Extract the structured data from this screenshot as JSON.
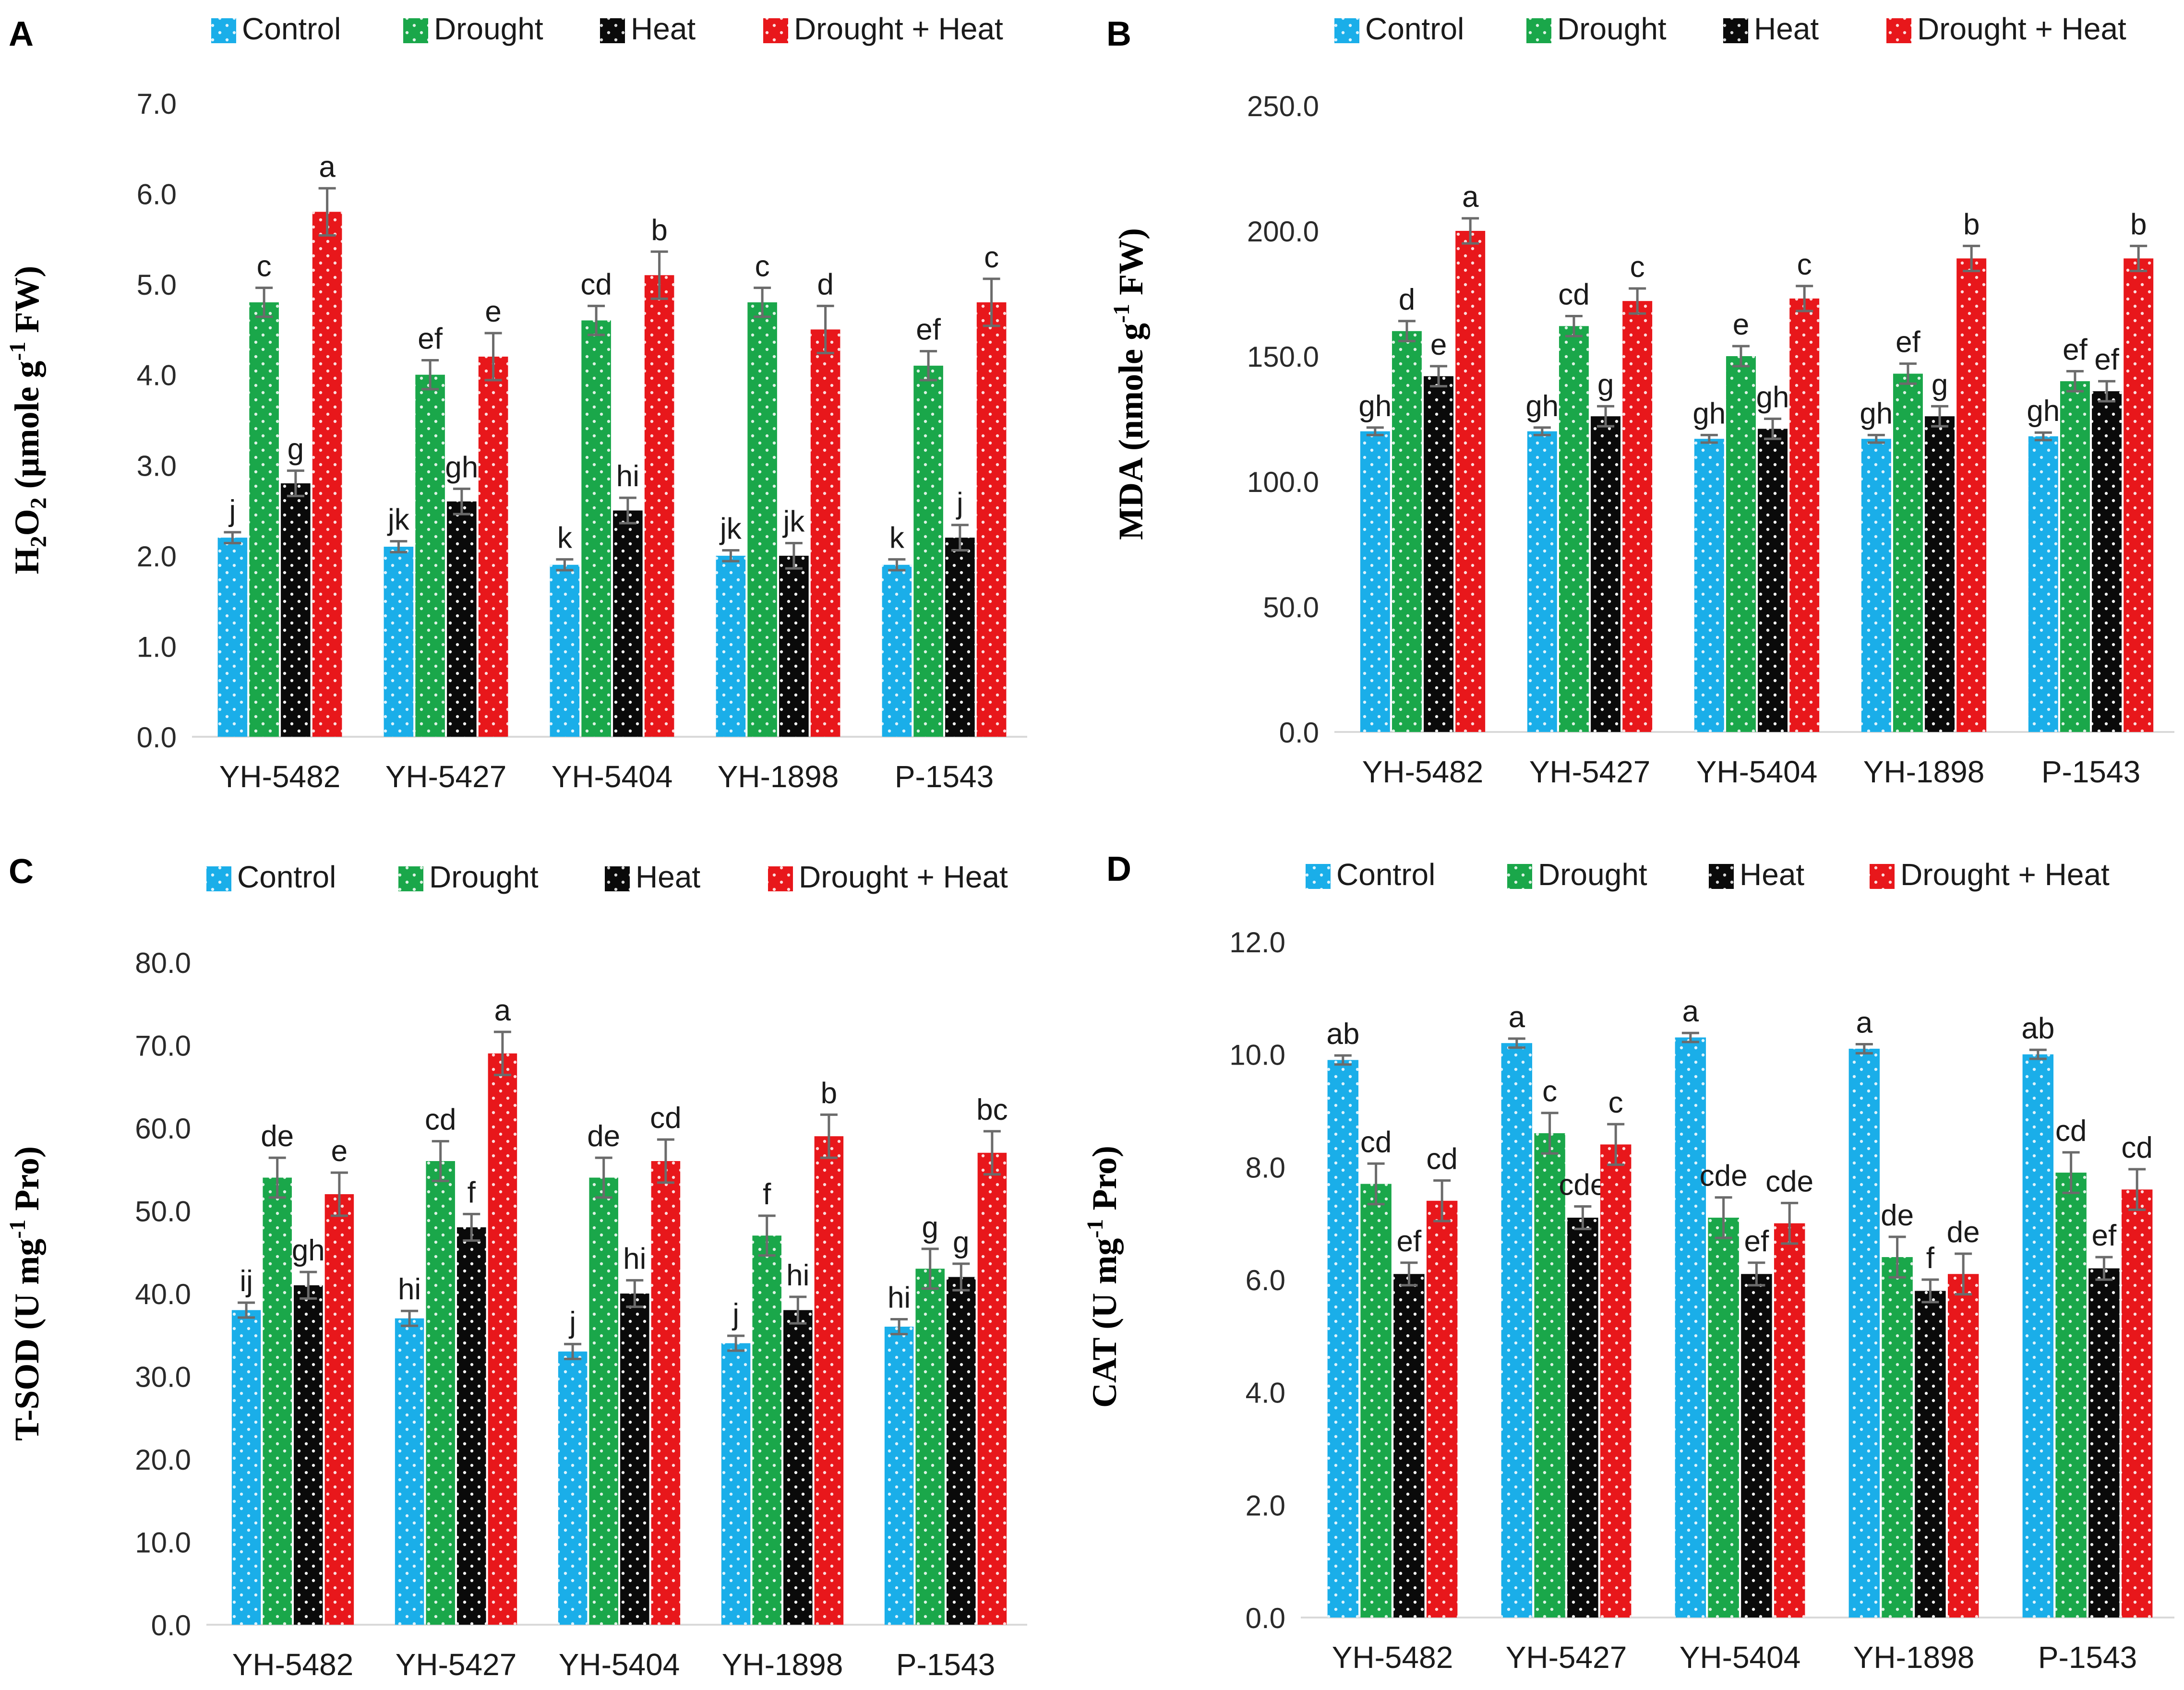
{
  "figure": {
    "legend_labels": [
      "Control",
      "Drought",
      "Heat",
      "Drought + Heat"
    ],
    "colors": {
      "Control": "#1aaee9",
      "Drought": "#1aa74a",
      "Heat": "#0a0a0a",
      "Drought + Heat": "#e8171b",
      "axis": "#d9d9d9",
      "errorbar": "#6b6b6b"
    }
  },
  "chart_data": [
    {
      "panel": "A",
      "type": "bar",
      "ylabel": {
        "main": "H",
        "sub1": "2",
        "mid": "O",
        "sub2": "2",
        "unit_prefix": " (μmole g",
        "sup": "-1",
        "unit_suffix": " FW)"
      },
      "ylim": [
        0,
        7
      ],
      "ytick_step": 1,
      "ytick_labels": [
        "0.0",
        "1.0",
        "2.0",
        "3.0",
        "4.0",
        "5.0",
        "6.0",
        "7.0"
      ],
      "categories": [
        "YH-5482",
        "YH-5427",
        "YH-5404",
        "YH-1898",
        "P-1543"
      ],
      "series": [
        {
          "name": "Control",
          "values": [
            2.2,
            2.1,
            1.9,
            2.0,
            1.9
          ],
          "errors": [
            0.06,
            0.06,
            0.06,
            0.06,
            0.06
          ],
          "letters": [
            "j",
            "jk",
            "k",
            "jk",
            "k"
          ]
        },
        {
          "name": "Drought",
          "values": [
            4.8,
            4.0,
            4.6,
            4.8,
            4.1
          ],
          "errors": [
            0.16,
            0.16,
            0.16,
            0.16,
            0.16
          ],
          "letters": [
            "c",
            "ef",
            "cd",
            "c",
            "ef"
          ]
        },
        {
          "name": "Heat",
          "values": [
            2.8,
            2.6,
            2.5,
            2.0,
            2.2
          ],
          "errors": [
            0.14,
            0.14,
            0.14,
            0.14,
            0.14
          ],
          "letters": [
            "g",
            "gh",
            "hi",
            "jk",
            "j"
          ]
        },
        {
          "name": "Drought + Heat",
          "values": [
            5.8,
            4.2,
            5.1,
            4.5,
            4.8
          ],
          "errors": [
            0.26,
            0.26,
            0.26,
            0.26,
            0.26
          ],
          "letters": [
            "a",
            "e",
            "b",
            "d",
            "c"
          ]
        }
      ]
    },
    {
      "panel": "B",
      "type": "bar",
      "ylabel": {
        "main": "MDA",
        "unit_prefix": " (nmole g",
        "sup": "-1",
        "unit_suffix": " FW)"
      },
      "ylim": [
        0,
        250
      ],
      "ytick_step": 50,
      "ytick_labels": [
        "0.0",
        "50.0",
        "100.0",
        "150.0",
        "200.0",
        "250.0"
      ],
      "categories": [
        "YH-5482",
        "YH-5427",
        "YH-5404",
        "YH-1898",
        "P-1543"
      ],
      "series": [
        {
          "name": "Control",
          "values": [
            120,
            120,
            117,
            117,
            118
          ],
          "errors": [
            1.5,
            1.5,
            1.5,
            1.5,
            1.5
          ],
          "letters": [
            "gh",
            "gh",
            "gh",
            "gh",
            "gh"
          ]
        },
        {
          "name": "Drought",
          "values": [
            160,
            162,
            150,
            143,
            140
          ],
          "errors": [
            4,
            4,
            4,
            4,
            4
          ],
          "letters": [
            "d",
            "cd",
            "e",
            "ef",
            "ef"
          ]
        },
        {
          "name": "Heat",
          "values": [
            142,
            126,
            121,
            126,
            136
          ],
          "errors": [
            4,
            4,
            4,
            4,
            4
          ],
          "letters": [
            "e",
            "g",
            "gh",
            "g",
            "ef"
          ]
        },
        {
          "name": "Drought + Heat",
          "values": [
            200,
            172,
            173,
            189,
            189
          ],
          "errors": [
            5,
            5,
            5,
            5,
            5
          ],
          "letters": [
            "a",
            "c",
            "c",
            "b",
            "b"
          ]
        }
      ]
    },
    {
      "panel": "C",
      "type": "bar",
      "ylabel": {
        "main": "T-SOD",
        "unit_prefix": " (U mg",
        "sup": "-1",
        "unit_suffix": " Pro)"
      },
      "ylim": [
        0,
        80
      ],
      "ytick_step": 10,
      "ytick_labels": [
        "0.0",
        "10.0",
        "20.0",
        "30.0",
        "40.0",
        "50.0",
        "60.0",
        "70.0",
        "80.0"
      ],
      "categories": [
        "YH-5482",
        "YH-5427",
        "YH-5404",
        "YH-1898",
        "P-1543"
      ],
      "series": [
        {
          "name": "Control",
          "values": [
            38,
            37,
            33,
            34,
            36
          ],
          "errors": [
            0.9,
            0.9,
            0.9,
            0.9,
            0.9
          ],
          "letters": [
            "ij",
            "hi",
            "j",
            "j",
            "hi"
          ]
        },
        {
          "name": "Drought",
          "values": [
            54,
            56,
            54,
            47,
            43
          ],
          "errors": [
            2.4,
            2.4,
            2.4,
            2.4,
            2.4
          ],
          "letters": [
            "de",
            "cd",
            "de",
            "f",
            "g"
          ]
        },
        {
          "name": "Heat",
          "values": [
            41,
            48,
            40,
            38,
            42
          ],
          "errors": [
            1.6,
            1.6,
            1.6,
            1.6,
            1.6
          ],
          "letters": [
            "gh",
            "f",
            "hi",
            "hi",
            "g"
          ]
        },
        {
          "name": "Drought + Heat",
          "values": [
            52,
            69,
            56,
            59,
            57
          ],
          "errors": [
            2.6,
            2.6,
            2.6,
            2.6,
            2.6
          ],
          "letters": [
            "e",
            "a",
            "cd",
            "b",
            "bc"
          ]
        }
      ]
    },
    {
      "panel": "D",
      "type": "bar",
      "ylabel": {
        "main": "CAT",
        "unit_prefix": " (U mg",
        "sup": "-1",
        "unit_suffix": " Pro)"
      },
      "ylim": [
        0,
        12
      ],
      "ytick_step": 2,
      "ytick_labels": [
        "0.0",
        "2.0",
        "4.0",
        "6.0",
        "8.0",
        "10.0",
        "12.0"
      ],
      "categories": [
        "YH-5482",
        "YH-5427",
        "YH-5404",
        "YH-1898",
        "P-1543"
      ],
      "series": [
        {
          "name": "Control",
          "values": [
            9.9,
            10.2,
            10.3,
            10.1,
            10.0
          ],
          "errors": [
            0.08,
            0.08,
            0.08,
            0.08,
            0.08
          ],
          "letters": [
            "ab",
            "a",
            "a",
            "a",
            "ab"
          ]
        },
        {
          "name": "Drought",
          "values": [
            7.7,
            8.6,
            7.1,
            6.4,
            7.9
          ],
          "errors": [
            0.36,
            0.36,
            0.36,
            0.36,
            0.36
          ],
          "letters": [
            "cd",
            "c",
            "cde",
            "de",
            "cd"
          ]
        },
        {
          "name": "Heat",
          "values": [
            6.1,
            7.1,
            6.1,
            5.8,
            6.2
          ],
          "errors": [
            0.2,
            0.2,
            0.2,
            0.2,
            0.2
          ],
          "letters": [
            "ef",
            "cde",
            "ef",
            "f",
            "ef"
          ]
        },
        {
          "name": "Drought + Heat",
          "values": [
            7.4,
            8.4,
            7.0,
            6.1,
            7.6
          ],
          "errors": [
            0.36,
            0.36,
            0.36,
            0.36,
            0.36
          ],
          "letters": [
            "cd",
            "c",
            "cde",
            "de",
            "cd"
          ]
        }
      ]
    }
  ]
}
